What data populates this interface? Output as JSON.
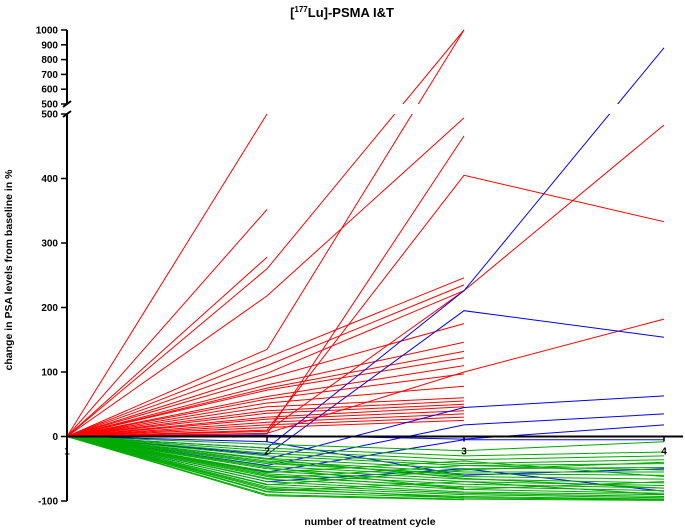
{
  "chart_data": {
    "type": "line",
    "title_prefix": "[",
    "title_sup": "177",
    "title_rest": "Lu]-PSMA I&T",
    "xlabel": "number of treatment cycle",
    "ylabel": "change in PSA levels from baseline in %",
    "x_ticks": [
      "1",
      "2",
      "3",
      "4"
    ],
    "y_ticks_lower": [
      "-100",
      "0",
      "100",
      "200",
      "300",
      "400",
      "500"
    ],
    "y_ticks_upper": [
      "500",
      "600",
      "700",
      "800",
      "900",
      "1000"
    ],
    "y_axis_break": true,
    "xlim": [
      1,
      4
    ],
    "ylim": [
      -100,
      1000
    ],
    "colors": {
      "increase": "#ff0000",
      "mixed": "#0000ff",
      "decrease": "#00aa00"
    },
    "series": [
      {
        "group": "increase",
        "x": [
          1,
          2
        ],
        "values": [
          0,
          500
        ]
      },
      {
        "group": "increase",
        "x": [
          1,
          2
        ],
        "values": [
          0,
          352
        ]
      },
      {
        "group": "increase",
        "x": [
          1,
          2
        ],
        "values": [
          0,
          278
        ]
      },
      {
        "group": "increase",
        "x": [
          1,
          2,
          3
        ],
        "values": [
          0,
          260,
          1000
        ]
      },
      {
        "group": "increase",
        "x": [
          1,
          2,
          3
        ],
        "values": [
          0,
          218,
          494
        ]
      },
      {
        "group": "increase",
        "x": [
          1,
          2,
          3
        ],
        "values": [
          0,
          135,
          1000
        ]
      },
      {
        "group": "increase",
        "x": [
          1,
          2,
          3
        ],
        "values": [
          0,
          122,
          246
        ]
      },
      {
        "group": "increase",
        "x": [
          1,
          2,
          3
        ],
        "values": [
          0,
          110,
          235
        ]
      },
      {
        "group": "increase",
        "x": [
          1,
          2,
          3
        ],
        "values": [
          0,
          98,
          226
        ]
      },
      {
        "group": "increase",
        "x": [
          1,
          2,
          3
        ],
        "values": [
          0,
          90,
          175
        ]
      },
      {
        "group": "increase",
        "x": [
          1,
          2,
          3
        ],
        "values": [
          0,
          80,
          146
        ]
      },
      {
        "group": "increase",
        "x": [
          1,
          2,
          3
        ],
        "values": [
          0,
          75,
          132
        ]
      },
      {
        "group": "increase",
        "x": [
          1,
          2,
          3
        ],
        "values": [
          0,
          72,
          122
        ]
      },
      {
        "group": "increase",
        "x": [
          1,
          2,
          3
        ],
        "values": [
          0,
          62,
          110
        ]
      },
      {
        "group": "increase",
        "x": [
          1,
          2,
          3
        ],
        "values": [
          0,
          58,
          97
        ]
      },
      {
        "group": "increase",
        "x": [
          1,
          2,
          3
        ],
        "values": [
          0,
          52,
          78
        ]
      },
      {
        "group": "increase",
        "x": [
          1,
          2,
          3
        ],
        "values": [
          0,
          46,
          60
        ]
      },
      {
        "group": "increase",
        "x": [
          1,
          2,
          3
        ],
        "values": [
          0,
          40,
          55
        ]
      },
      {
        "group": "increase",
        "x": [
          1,
          2,
          3
        ],
        "values": [
          0,
          36,
          50
        ]
      },
      {
        "group": "increase",
        "x": [
          1,
          2,
          3
        ],
        "values": [
          0,
          30,
          46
        ]
      },
      {
        "group": "increase",
        "x": [
          1,
          2,
          3
        ],
        "values": [
          0,
          27,
          40
        ]
      },
      {
        "group": "increase",
        "x": [
          1,
          2,
          3
        ],
        "values": [
          0,
          22,
          35
        ]
      },
      {
        "group": "increase",
        "x": [
          1,
          2,
          3
        ],
        "values": [
          0,
          18,
          30
        ]
      },
      {
        "group": "increase",
        "x": [
          1,
          2,
          3
        ],
        "values": [
          0,
          14,
          25
        ]
      },
      {
        "group": "increase",
        "x": [
          1,
          2,
          3,
          4
        ],
        "values": [
          0,
          10,
          405,
          333
        ]
      },
      {
        "group": "increase",
        "x": [
          1,
          2,
          3,
          4
        ],
        "values": [
          0,
          8,
          226,
          483
        ]
      },
      {
        "group": "increase",
        "x": [
          1,
          2,
          3,
          4
        ],
        "values": [
          0,
          5,
          100,
          182
        ]
      },
      {
        "group": "increase",
        "x": [
          1,
          2,
          3
        ],
        "values": [
          0,
          4,
          466
        ]
      },
      {
        "group": "mixed",
        "x": [
          1,
          2,
          3,
          4
        ],
        "values": [
          0,
          -18,
          226,
          880
        ]
      },
      {
        "group": "mixed",
        "x": [
          1,
          2,
          3,
          4
        ],
        "values": [
          0,
          -28,
          195,
          154
        ]
      },
      {
        "group": "mixed",
        "x": [
          1,
          2,
          3,
          4
        ],
        "values": [
          0,
          -35,
          45,
          63
        ]
      },
      {
        "group": "mixed",
        "x": [
          1,
          2,
          3,
          4
        ],
        "values": [
          0,
          -45,
          18,
          35
        ]
      },
      {
        "group": "mixed",
        "x": [
          1,
          2,
          3,
          4
        ],
        "values": [
          0,
          2,
          -4,
          18
        ]
      },
      {
        "group": "mixed",
        "x": [
          1,
          2,
          3,
          4
        ],
        "values": [
          0,
          -55,
          -5,
          -5
        ]
      },
      {
        "group": "mixed",
        "x": [
          1,
          2,
          3,
          4
        ],
        "values": [
          0,
          -70,
          -50,
          -85
        ]
      },
      {
        "group": "mixed",
        "x": [
          1,
          2,
          3,
          4
        ],
        "values": [
          0,
          -8,
          -60,
          -50
        ]
      },
      {
        "group": "decrease",
        "x": [
          1,
          2,
          3,
          4
        ],
        "values": [
          0,
          -12,
          -22,
          -8
        ]
      },
      {
        "group": "decrease",
        "x": [
          1,
          2,
          3,
          4
        ],
        "values": [
          0,
          -18,
          -30,
          -24
        ]
      },
      {
        "group": "decrease",
        "x": [
          1,
          2,
          3,
          4
        ],
        "values": [
          0,
          -22,
          -36,
          -30
        ]
      },
      {
        "group": "decrease",
        "x": [
          1,
          2,
          3,
          4
        ],
        "values": [
          0,
          -26,
          -42,
          -36
        ]
      },
      {
        "group": "decrease",
        "x": [
          1,
          2,
          3,
          4
        ],
        "values": [
          0,
          -30,
          -45,
          -42
        ]
      },
      {
        "group": "decrease",
        "x": [
          1,
          2,
          3,
          4
        ],
        "values": [
          0,
          -34,
          -50,
          -48
        ]
      },
      {
        "group": "decrease",
        "x": [
          1,
          2,
          3,
          4
        ],
        "values": [
          0,
          -38,
          -55,
          -55
        ]
      },
      {
        "group": "decrease",
        "x": [
          1,
          2,
          3,
          4
        ],
        "values": [
          0,
          -42,
          -58,
          -60
        ]
      },
      {
        "group": "decrease",
        "x": [
          1,
          2,
          3,
          4
        ],
        "values": [
          0,
          -46,
          -62,
          -66
        ]
      },
      {
        "group": "decrease",
        "x": [
          1,
          2,
          3,
          4
        ],
        "values": [
          0,
          -50,
          -66,
          -72
        ]
      },
      {
        "group": "decrease",
        "x": [
          1,
          2,
          3,
          4
        ],
        "values": [
          0,
          -54,
          -70,
          -76
        ]
      },
      {
        "group": "decrease",
        "x": [
          1,
          2,
          3,
          4
        ],
        "values": [
          0,
          -58,
          -74,
          -80
        ]
      },
      {
        "group": "decrease",
        "x": [
          1,
          2,
          3,
          4
        ],
        "values": [
          0,
          -62,
          -78,
          -84
        ]
      },
      {
        "group": "decrease",
        "x": [
          1,
          2,
          3,
          4
        ],
        "values": [
          0,
          -66,
          -82,
          -88
        ]
      },
      {
        "group": "decrease",
        "x": [
          1,
          2,
          3,
          4
        ],
        "values": [
          0,
          -70,
          -86,
          -90
        ]
      },
      {
        "group": "decrease",
        "x": [
          1,
          2,
          3,
          4
        ],
        "values": [
          0,
          -74,
          -88,
          -93
        ]
      },
      {
        "group": "decrease",
        "x": [
          1,
          2,
          3,
          4
        ],
        "values": [
          0,
          -78,
          -90,
          -95
        ]
      },
      {
        "group": "decrease",
        "x": [
          1,
          2,
          3,
          4
        ],
        "values": [
          0,
          -82,
          -93,
          -97
        ]
      },
      {
        "group": "decrease",
        "x": [
          1,
          2,
          3,
          4
        ],
        "values": [
          0,
          -86,
          -95,
          -98
        ]
      },
      {
        "group": "decrease",
        "x": [
          1,
          2,
          3,
          4
        ],
        "values": [
          0,
          -90,
          -97,
          -99
        ]
      },
      {
        "group": "decrease",
        "x": [
          1,
          2,
          3
        ],
        "values": [
          0,
          -40,
          -60
        ]
      },
      {
        "group": "decrease",
        "x": [
          1,
          2,
          3
        ],
        "values": [
          0,
          -60,
          -80
        ]
      },
      {
        "group": "decrease",
        "x": [
          1,
          2,
          3
        ],
        "values": [
          0,
          -80,
          -95
        ]
      },
      {
        "group": "decrease",
        "x": [
          1,
          2,
          3
        ],
        "values": [
          0,
          -92,
          -98
        ]
      },
      {
        "group": "decrease",
        "x": [
          1,
          2,
          3,
          4
        ],
        "values": [
          0,
          -35,
          -65,
          -80
        ]
      },
      {
        "group": "decrease",
        "x": [
          1,
          2,
          3,
          4
        ],
        "values": [
          0,
          -65,
          -45,
          -52
        ]
      },
      {
        "group": "decrease",
        "x": [
          1,
          2,
          3,
          4
        ],
        "values": [
          0,
          -75,
          -52,
          -40
        ]
      },
      {
        "group": "decrease",
        "x": [
          1,
          2,
          3,
          4
        ],
        "values": [
          0,
          -85,
          -70,
          -90
        ]
      },
      {
        "group": "decrease",
        "x": [
          1,
          2,
          3,
          4
        ],
        "values": [
          0,
          -48,
          -82,
          -70
        ]
      },
      {
        "group": "decrease",
        "x": [
          1,
          2,
          3,
          4
        ],
        "values": [
          0,
          -56,
          -38,
          -62
        ]
      }
    ]
  }
}
